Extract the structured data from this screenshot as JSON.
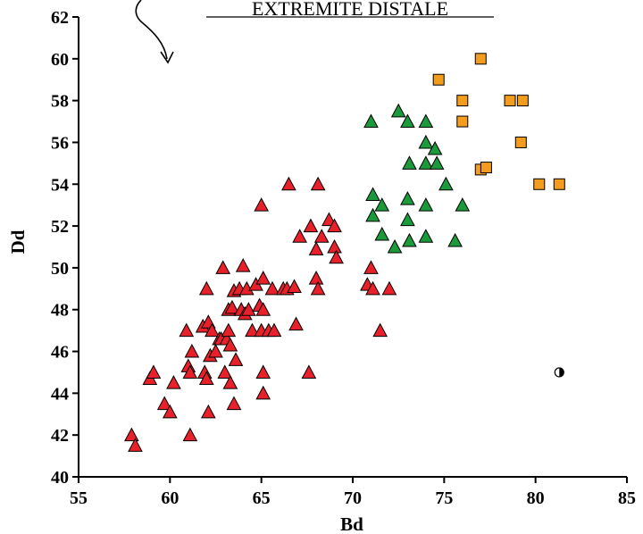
{
  "chart_data": {
    "type": "scatter",
    "title": "EXTREMITE DISTALE",
    "xlabel": "Bd",
    "ylabel": "Dd",
    "xlim": [
      55,
      85
    ],
    "ylim": [
      40,
      62
    ],
    "xticks": [
      55,
      60,
      65,
      70,
      75,
      80,
      85
    ],
    "yticks": [
      40,
      42,
      44,
      46,
      48,
      50,
      52,
      54,
      56,
      58,
      60,
      62
    ],
    "grid": false,
    "colors": {
      "red_triangles": "#e8202a",
      "green_triangles": "#1a9a3a",
      "orange_squares": "#f39c1e",
      "half_circle": "#000000"
    },
    "series": [
      {
        "marker": "triangle",
        "color": "#e8202a",
        "points": [
          [
            57.9,
            42.0
          ],
          [
            58.1,
            41.5
          ],
          [
            58.9,
            44.7
          ],
          [
            59.1,
            45.0
          ],
          [
            59.7,
            43.5
          ],
          [
            60.0,
            43.1
          ],
          [
            60.2,
            44.5
          ],
          [
            60.9,
            47.0
          ],
          [
            61.0,
            45.3
          ],
          [
            61.1,
            42.0
          ],
          [
            61.1,
            45.0
          ],
          [
            61.2,
            46.0
          ],
          [
            62.0,
            49.0
          ],
          [
            61.8,
            47.2
          ],
          [
            62.1,
            47.4
          ],
          [
            61.9,
            45.0
          ],
          [
            62.0,
            44.7
          ],
          [
            62.1,
            43.1
          ],
          [
            62.3,
            47.0
          ],
          [
            62.2,
            45.8
          ],
          [
            62.5,
            46.0
          ],
          [
            62.7,
            46.6
          ],
          [
            62.8,
            46.6
          ],
          [
            62.9,
            50.0
          ],
          [
            63.0,
            45.0
          ],
          [
            63.1,
            46.6
          ],
          [
            63.2,
            48.0
          ],
          [
            63.2,
            47.0
          ],
          [
            63.3,
            44.5
          ],
          [
            63.3,
            46.3
          ],
          [
            63.4,
            48.1
          ],
          [
            63.5,
            43.5
          ],
          [
            63.5,
            48.9
          ],
          [
            63.6,
            45.6
          ],
          [
            63.8,
            49.0
          ],
          [
            63.9,
            48.0
          ],
          [
            64.0,
            50.1
          ],
          [
            64.1,
            47.8
          ],
          [
            64.2,
            49.0
          ],
          [
            64.3,
            48.0
          ],
          [
            64.5,
            47.0
          ],
          [
            64.7,
            49.2
          ],
          [
            64.9,
            48.2
          ],
          [
            65.0,
            47.0
          ],
          [
            65.0,
            53.0
          ],
          [
            65.1,
            49.5
          ],
          [
            65.1,
            48.0
          ],
          [
            65.1,
            45.0
          ],
          [
            65.1,
            44.0
          ],
          [
            65.4,
            47.0
          ],
          [
            65.6,
            49.0
          ],
          [
            65.7,
            47.0
          ],
          [
            66.2,
            49.0
          ],
          [
            66.4,
            49.0
          ],
          [
            66.5,
            54.0
          ],
          [
            66.8,
            49.1
          ],
          [
            66.9,
            47.3
          ],
          [
            67.1,
            51.5
          ],
          [
            67.6,
            45.0
          ],
          [
            67.7,
            52.0
          ],
          [
            68.0,
            50.9
          ],
          [
            68.0,
            49.5
          ],
          [
            68.1,
            49.0
          ],
          [
            68.1,
            54.0
          ],
          [
            68.3,
            51.5
          ],
          [
            68.7,
            52.3
          ],
          [
            69.0,
            52.0
          ],
          [
            69.0,
            51.0
          ],
          [
            69.1,
            50.5
          ],
          [
            70.8,
            49.2
          ],
          [
            71.0,
            50.0
          ],
          [
            71.1,
            49.0
          ],
          [
            71.5,
            47.0
          ],
          [
            72.0,
            49.0
          ]
        ]
      },
      {
        "marker": "triangle",
        "color": "#1a9a3a",
        "points": [
          [
            71.0,
            57.0
          ],
          [
            71.1,
            53.5
          ],
          [
            71.1,
            52.5
          ],
          [
            71.6,
            53.0
          ],
          [
            71.6,
            51.6
          ],
          [
            72.3,
            51.0
          ],
          [
            72.5,
            57.5
          ],
          [
            73.0,
            57.0
          ],
          [
            73.0,
            53.3
          ],
          [
            73.0,
            52.3
          ],
          [
            73.1,
            55.0
          ],
          [
            73.1,
            51.3
          ],
          [
            74.0,
            57.0
          ],
          [
            74.0,
            56.0
          ],
          [
            74.0,
            55.0
          ],
          [
            74.0,
            53.0
          ],
          [
            74.0,
            51.5
          ],
          [
            74.5,
            55.7
          ],
          [
            74.6,
            55.0
          ],
          [
            75.1,
            54.0
          ],
          [
            75.6,
            51.3
          ],
          [
            76.0,
            53.0
          ]
        ]
      },
      {
        "marker": "square",
        "color": "#f39c1e",
        "points": [
          [
            74.7,
            59.0
          ],
          [
            76.0,
            58.0
          ],
          [
            76.0,
            57.0
          ],
          [
            77.0,
            60.0
          ],
          [
            77.0,
            54.7
          ],
          [
            77.3,
            54.8
          ],
          [
            78.6,
            58.0
          ],
          [
            79.3,
            58.0
          ],
          [
            79.2,
            56.0
          ],
          [
            80.2,
            54.0
          ],
          [
            81.3,
            54.0
          ]
        ]
      },
      {
        "marker": "half-circle",
        "color": "#000000",
        "points": [
          [
            81.3,
            45.0
          ]
        ]
      }
    ]
  }
}
